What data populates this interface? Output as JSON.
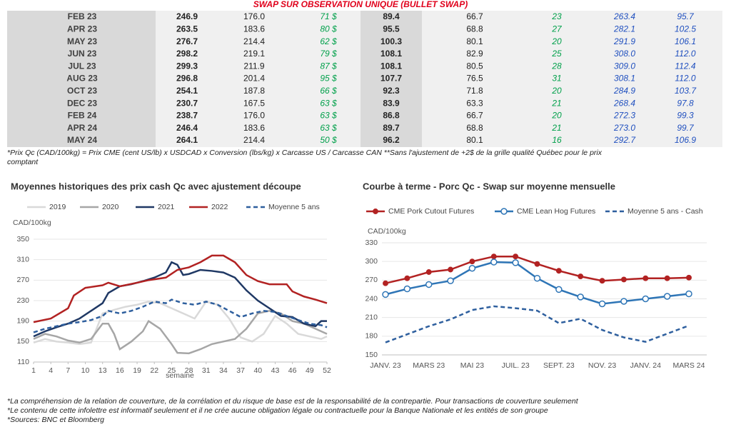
{
  "table": {
    "title": "SWAP SUR OBSERVATION UNIQUE (BULLET SWAP)",
    "rows": [
      [
        "FEB 23",
        "246.9",
        "176.0",
        "71 $",
        "89.4",
        "66.7",
        "23",
        "263.4",
        "95.7"
      ],
      [
        "APR 23",
        "263.5",
        "183.6",
        "80 $",
        "95.5",
        "68.8",
        "27",
        "282.1",
        "102.5"
      ],
      [
        "MAY 23",
        "276.7",
        "214.4",
        "62 $",
        "100.3",
        "80.1",
        "20",
        "291.9",
        "106.1"
      ],
      [
        "JUN 23",
        "298.2",
        "219.1",
        "79 $",
        "108.1",
        "82.9",
        "25",
        "308.0",
        "112.0"
      ],
      [
        "JUL 23",
        "299.3",
        "211.9",
        "87 $",
        "108.1",
        "80.5",
        "28",
        "309.0",
        "112.4"
      ],
      [
        "AUG 23",
        "296.8",
        "201.4",
        "95 $",
        "107.7",
        "76.5",
        "31",
        "308.1",
        "112.0"
      ],
      [
        "OCT 23",
        "254.1",
        "187.8",
        "66 $",
        "92.3",
        "71.8",
        "20",
        "284.9",
        "103.7"
      ],
      [
        "DEC 23",
        "230.7",
        "167.5",
        "63 $",
        "83.9",
        "63.3",
        "21",
        "268.4",
        "97.8"
      ],
      [
        "FEB 24",
        "238.7",
        "176.0",
        "63 $",
        "86.8",
        "66.7",
        "20",
        "272.3",
        "99.3"
      ],
      [
        "APR 24",
        "246.4",
        "183.6",
        "63 $",
        "89.7",
        "68.8",
        "21",
        "273.0",
        "99.7"
      ],
      [
        "MAY 24",
        "264.1",
        "214.4",
        "50 $",
        "96.2",
        "80.1",
        "16",
        "292.7",
        "106.9"
      ]
    ],
    "note": [
      "*Prix Qc (CAD/100kg) = Prix CME (cent US/lb) x USDCAD x Conversion (lbs/kg) x Carcasse US / Carcasse CAN **Sans l'ajustement de +2$ de la grille qualité Québec pour le prix",
      "comptant"
    ]
  },
  "chart_data": [
    {
      "type": "line",
      "title": "Moyennes historiques des prix cash Qc avec ajustement découpe",
      "y_label": "CAD/100kg",
      "x_label": "semaine",
      "xlim": [
        1,
        52
      ],
      "xticks": [
        1,
        4,
        7,
        10,
        13,
        16,
        19,
        22,
        25,
        28,
        31,
        34,
        37,
        40,
        43,
        46,
        49,
        52
      ],
      "ylim": [
        110,
        350
      ],
      "yticks": [
        110,
        150,
        190,
        230,
        270,
        310,
        350
      ],
      "grid": true,
      "legend": "top",
      "series": [
        {
          "name": "2019",
          "color": "#d9d9d9",
          "line_style": "solid",
          "x": [
            1,
            3,
            5,
            7,
            9,
            11,
            13,
            15,
            17,
            19,
            21,
            23,
            25,
            27,
            29,
            31,
            33,
            35,
            37,
            39,
            41,
            43,
            45,
            47,
            49,
            51,
            52
          ],
          "values": [
            148,
            155,
            150,
            148,
            145,
            148,
            205,
            212,
            218,
            222,
            228,
            225,
            215,
            205,
            195,
            228,
            222,
            195,
            158,
            150,
            165,
            200,
            185,
            165,
            160,
            155,
            160
          ]
        },
        {
          "name": "2020",
          "color": "#a6a6a6",
          "line_style": "solid",
          "x": [
            1,
            3,
            5,
            7,
            9,
            11,
            13,
            14,
            15,
            16,
            18,
            20,
            21,
            23,
            25,
            26,
            28,
            30,
            32,
            34,
            36,
            38,
            40,
            42,
            44,
            46,
            48,
            50,
            52
          ],
          "values": [
            155,
            165,
            160,
            152,
            148,
            155,
            185,
            185,
            165,
            135,
            150,
            170,
            190,
            175,
            145,
            128,
            127,
            135,
            145,
            150,
            155,
            175,
            205,
            210,
            205,
            190,
            185,
            175,
            165
          ]
        },
        {
          "name": "2021",
          "color": "#1f3864",
          "line_style": "solid",
          "x": [
            1,
            3,
            5,
            7,
            9,
            11,
            13,
            14,
            16,
            18,
            20,
            22,
            24,
            25,
            26,
            27,
            28,
            30,
            32,
            34,
            36,
            38,
            40,
            42,
            44,
            46,
            48,
            50,
            51,
            52
          ],
          "values": [
            160,
            170,
            178,
            185,
            195,
            210,
            225,
            245,
            258,
            262,
            268,
            275,
            285,
            305,
            300,
            280,
            282,
            290,
            288,
            285,
            275,
            250,
            230,
            215,
            200,
            198,
            185,
            180,
            190,
            190
          ]
        },
        {
          "name": "2022",
          "color": "#b22222",
          "line_style": "solid",
          "x": [
            1,
            4,
            7,
            8,
            10,
            13,
            14,
            16,
            19,
            21,
            24,
            26,
            28,
            30,
            32,
            34,
            36,
            38,
            40,
            42,
            45,
            46,
            48,
            50,
            52
          ],
          "values": [
            188,
            195,
            215,
            240,
            255,
            260,
            265,
            258,
            265,
            270,
            275,
            290,
            295,
            305,
            318,
            318,
            305,
            280,
            268,
            262,
            262,
            248,
            238,
            232,
            225
          ]
        },
        {
          "name": "Moyenne 5 ans",
          "color": "#2e5f9e",
          "line_style": "dashed",
          "x": [
            1,
            3,
            5,
            7,
            9,
            11,
            13,
            14,
            16,
            18,
            20,
            22,
            24,
            25,
            27,
            29,
            31,
            33,
            35,
            37,
            39,
            41,
            43,
            45,
            47,
            49,
            51,
            52
          ],
          "values": [
            168,
            175,
            180,
            185,
            188,
            192,
            200,
            210,
            205,
            210,
            218,
            228,
            225,
            232,
            225,
            222,
            228,
            222,
            210,
            198,
            205,
            210,
            208,
            200,
            192,
            185,
            182,
            178
          ]
        }
      ]
    },
    {
      "type": "line",
      "title": "Courbe à terme - Porc Qc - Swap sur moyenne mensuelle",
      "y_label": "CAD/100kg",
      "categories": [
        "JANV. 23",
        null,
        "MARS 23",
        null,
        "MAI 23",
        null,
        "JUIL. 23",
        null,
        "SEPT. 23",
        null,
        "NOV. 23",
        null,
        "JANV. 24",
        null,
        "MARS 24"
      ],
      "ylim": [
        150,
        330
      ],
      "yticks": [
        150,
        180,
        210,
        240,
        270,
        300,
        330
      ],
      "grid": true,
      "legend": "top",
      "series": [
        {
          "name": "CME Pork Cutout Futures",
          "color": "#b22222",
          "line_style": "solid",
          "marker": "filled",
          "values": [
            265,
            273,
            283,
            287,
            300,
            308,
            308,
            296,
            285,
            276,
            269,
            271,
            273,
            273,
            274
          ]
        },
        {
          "name": "CME Lean Hog Futures",
          "color": "#2e75b6",
          "line_style": "solid",
          "marker": "hollow",
          "values": [
            247,
            256,
            263,
            269,
            289,
            299,
            298,
            273,
            255,
            243,
            232,
            236,
            240,
            244,
            248
          ]
        },
        {
          "name": "Moyenne 5 ans - Cash",
          "color": "#2e5f9e",
          "line_style": "dashed",
          "marker": "none",
          "values": [
            170,
            183,
            196,
            207,
            222,
            228,
            225,
            221,
            201,
            208,
            190,
            178,
            171,
            184,
            197
          ]
        }
      ]
    }
  ],
  "notes": [
    "*La compréhension de la relation de couverture, de la corrélation et du risque de base est de la responsabilité de la contrepartie. Pour transactions de couverture seulement",
    "*Le contenu de cette infolettre est informatif seulement et il ne crée aucune obligation légale ou contractuelle pour la Banque Nationale et les entités de son groupe",
    "*Sources: BNC et Bloomberg"
  ]
}
